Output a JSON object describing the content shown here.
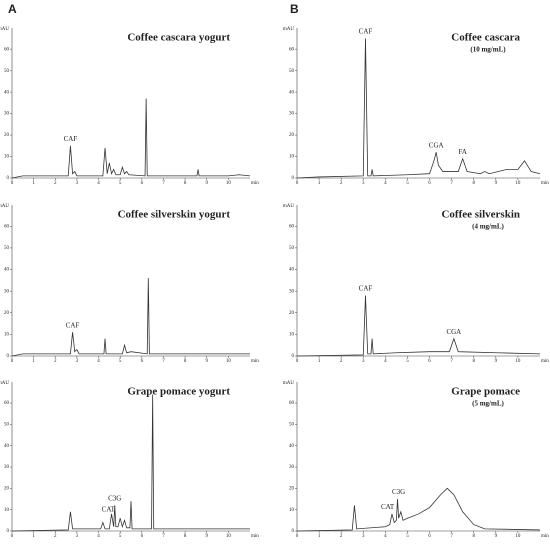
{
  "panel_labels": [
    "A",
    "B"
  ],
  "chart_data": [
    {
      "type": "line",
      "title": "Coffee cascara yogurt",
      "x_label": "min",
      "y_label": "mAU",
      "color": "#333333",
      "xlim": [
        0,
        11
      ],
      "ylim": [
        0,
        68
      ],
      "xticks": [
        0,
        1,
        2,
        3,
        4,
        5,
        6,
        7,
        8,
        9,
        10
      ],
      "yticks": [
        0,
        10,
        20,
        30,
        40,
        50,
        60
      ],
      "x": [
        0,
        0.5,
        2.6,
        2.7,
        2.8,
        2.9,
        3.0,
        4.2,
        4.3,
        4.4,
        4.5,
        4.6,
        4.7,
        4.8,
        5.0,
        5.1,
        5.2,
        5.3,
        5.4,
        6.15,
        6.2,
        6.25,
        8.55,
        8.6,
        8.65,
        10,
        10.5,
        11
      ],
      "values": [
        0,
        1,
        1,
        15,
        2,
        3,
        1,
        1,
        14,
        2,
        7,
        2,
        4,
        1.5,
        1.5,
        5,
        2,
        3,
        1.5,
        1,
        37,
        1,
        1,
        4,
        1,
        1,
        1.5,
        1
      ],
      "annotations": [
        {
          "text": "CAF",
          "x": 2.7,
          "y": 18
        }
      ]
    },
    {
      "type": "line",
      "title": "Coffee cascara",
      "subtitle": "(10 mg/mL)",
      "x_label": "min",
      "y_label": "mAU",
      "color": "#333333",
      "xlim": [
        0,
        11
      ],
      "ylim": [
        0,
        68
      ],
      "xticks": [
        0,
        1,
        2,
        3,
        4,
        5,
        6,
        7,
        8,
        9,
        10
      ],
      "yticks": [
        0,
        10,
        20,
        30,
        40,
        50,
        60
      ],
      "x": [
        0,
        1,
        3.0,
        3.1,
        3.2,
        3.35,
        3.4,
        3.45,
        5,
        6.0,
        6.2,
        6.3,
        6.4,
        6.6,
        7.3,
        7.5,
        7.7,
        8.3,
        8.5,
        8.7,
        9.5,
        10,
        10.3,
        10.6,
        11
      ],
      "values": [
        0,
        0.5,
        1,
        65,
        1,
        1,
        4,
        1,
        1.5,
        2,
        8,
        12,
        6,
        3,
        3,
        9,
        3,
        2,
        3,
        2,
        4,
        4,
        8,
        3,
        2
      ],
      "annotations": [
        {
          "text": "CAF",
          "x": 3.1,
          "y": 68
        },
        {
          "text": "CGA",
          "x": 6.3,
          "y": 15
        },
        {
          "text": "FA",
          "x": 7.5,
          "y": 12
        }
      ]
    },
    {
      "type": "line",
      "title": "Coffee silverskin yogurt",
      "x_label": "min",
      "y_label": "mAU",
      "color": "#333333",
      "xlim": [
        0,
        11
      ],
      "ylim": [
        0,
        68
      ],
      "xticks": [
        0,
        1,
        2,
        3,
        4,
        5,
        6,
        7,
        8,
        9,
        10
      ],
      "yticks": [
        0,
        10,
        20,
        30,
        40,
        50,
        60
      ],
      "x": [
        0,
        0.5,
        2.7,
        2.8,
        2.9,
        3.0,
        3.1,
        4.25,
        4.3,
        4.35,
        5.1,
        5.2,
        5.3,
        5.5,
        6.25,
        6.3,
        6.35,
        11
      ],
      "values": [
        0,
        1,
        1,
        11,
        2,
        3,
        1,
        1,
        8,
        1,
        1,
        5,
        1.5,
        2,
        1,
        36,
        1,
        1
      ],
      "annotations": [
        {
          "text": "CAF",
          "x": 2.8,
          "y": 14
        }
      ]
    },
    {
      "type": "line",
      "title": "Coffee silverskin",
      "subtitle": "(4 mg/mL)",
      "x_label": "min",
      "y_label": "mAU",
      "color": "#333333",
      "xlim": [
        0,
        11
      ],
      "ylim": [
        0,
        68
      ],
      "xticks": [
        0,
        1,
        2,
        3,
        4,
        5,
        6,
        7,
        8,
        9,
        10
      ],
      "yticks": [
        0,
        10,
        20,
        30,
        40,
        50,
        60
      ],
      "x": [
        0,
        3.0,
        3.1,
        3.2,
        3.35,
        3.4,
        3.45,
        4.5,
        6,
        6.9,
        7.1,
        7.3,
        9,
        11
      ],
      "values": [
        0,
        0.5,
        28,
        1,
        1,
        8,
        1,
        1.5,
        2,
        2,
        8,
        2,
        1.5,
        1
      ],
      "annotations": [
        {
          "text": "CAF",
          "x": 3.1,
          "y": 31
        },
        {
          "text": "CGA",
          "x": 7.1,
          "y": 11
        }
      ]
    },
    {
      "type": "line",
      "title": "Grape pomace yogurt",
      "x_label": "min",
      "y_label": "mAU",
      "color": "#333333",
      "xlim": [
        0,
        11
      ],
      "ylim": [
        0,
        68
      ],
      "xticks": [
        0,
        1,
        2,
        3,
        4,
        5,
        6,
        7,
        8,
        9,
        10
      ],
      "yticks": [
        0,
        10,
        20,
        30,
        40,
        50,
        60
      ],
      "x": [
        0,
        2.6,
        2.7,
        2.8,
        3.5,
        4.1,
        4.2,
        4.3,
        4.5,
        4.6,
        4.7,
        4.75,
        4.8,
        4.9,
        5.0,
        5.1,
        5.2,
        5.3,
        5.45,
        5.5,
        5.55,
        6.45,
        6.5,
        6.55,
        11
      ],
      "values": [
        0,
        0.5,
        9,
        1,
        1,
        1,
        4,
        1,
        1,
        8,
        2,
        12,
        2,
        2,
        6,
        2,
        5,
        1.5,
        1.5,
        14,
        1,
        1,
        64,
        1,
        1
      ],
      "annotations": [
        {
          "text": "CAT",
          "x": 4.45,
          "y": 10
        },
        {
          "text": "C3G",
          "x": 4.75,
          "y": 15
        }
      ]
    },
    {
      "type": "line",
      "title": "Grape pomace",
      "subtitle": "(5 mg/mL)",
      "x_label": "min",
      "y_label": "mAU",
      "color": "#333333",
      "xlim": [
        0,
        11
      ],
      "ylim": [
        0,
        68
      ],
      "xticks": [
        0,
        1,
        2,
        3,
        4,
        5,
        6,
        7,
        8,
        9,
        10
      ],
      "yticks": [
        0,
        10,
        20,
        30,
        40,
        50,
        60
      ],
      "x": [
        0,
        2.5,
        2.6,
        2.7,
        4.0,
        4.2,
        4.3,
        4.4,
        4.5,
        4.55,
        4.6,
        4.7,
        4.8,
        5.0,
        5.5,
        6.0,
        6.5,
        6.8,
        7.1,
        7.5,
        8.0,
        8.5,
        11
      ],
      "values": [
        0,
        0.5,
        12,
        1,
        2,
        3,
        8,
        4,
        5,
        15,
        6,
        9,
        5,
        6,
        8,
        11,
        17,
        20,
        17,
        9,
        3,
        1,
        0.5
      ],
      "annotations": [
        {
          "text": "CAT",
          "x": 4.1,
          "y": 11
        },
        {
          "text": "C3G",
          "x": 4.6,
          "y": 18
        }
      ]
    }
  ]
}
